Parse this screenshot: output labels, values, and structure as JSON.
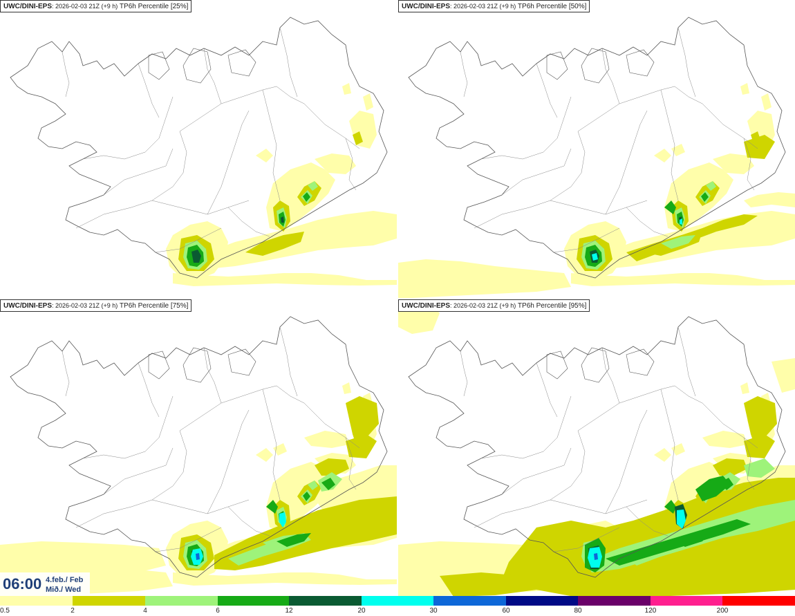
{
  "panels": [
    {
      "model": "UWC/DINI-EPS",
      "run": ": 2026-02-03 21Z (+9 h)",
      "field": " TP6h Percentile [25%]",
      "level": 1
    },
    {
      "model": "UWC/DINI-EPS",
      "run": ": 2026-02-03 21Z (+9 h)",
      "field": " TP6h Percentile [50%]",
      "level": 2
    },
    {
      "model": "UWC/DINI-EPS",
      "run": ": 2026-02-03 21Z (+9 h)",
      "field": " TP6h Percentile [75%]",
      "level": 3
    },
    {
      "model": "UWC/DINI-EPS",
      "run": ": 2026-02-03 21Z (+9 h)",
      "field": " TP6h Percentile [95%]",
      "level": 4
    }
  ],
  "valid_time": {
    "time": "06:00",
    "date_line1": "4.feb./ Feb",
    "date_line2": "Mið./ Wed"
  },
  "legend": {
    "ticks": [
      "0.5",
      "2",
      "4",
      "6",
      "12",
      "20",
      "30",
      "60",
      "80",
      "120",
      "200"
    ],
    "colors": [
      "#fffeaa",
      "#cfd500",
      "#9ef37a",
      "#16aa16",
      "#0a5a32",
      "#00ffee",
      "#0d67d8",
      "#000a86",
      "#6a0069",
      "#ff1f8f",
      "#ff0000"
    ]
  },
  "colors": {
    "c05": "#fffeaa",
    "c2": "#cfd500",
    "c4": "#9ef37a",
    "c6": "#16aa16",
    "c12": "#0a5a32",
    "c20": "#00ffee",
    "c30": "#0d67d8",
    "coast": "#555555"
  }
}
